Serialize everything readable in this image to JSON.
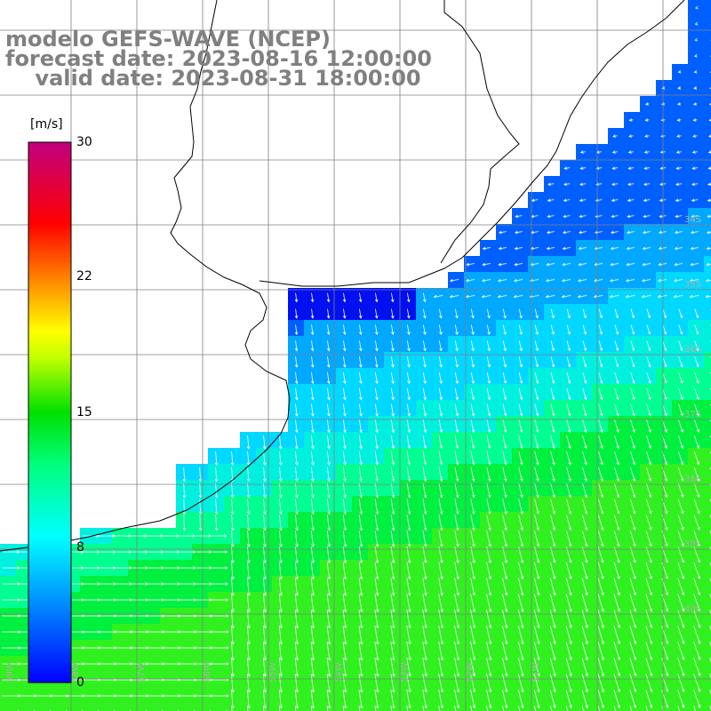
{
  "title": {
    "line1": "modelo GEFS-WAVE (NCEP)",
    "line2": "forecast date: 2023-08-16 12:00:00",
    "line3": "    valid date: 2023-08-31 18:00:00"
  },
  "colorbar": {
    "unit": "[m/s]",
    "min": 0,
    "max": 30,
    "ticks": [
      "30",
      "22",
      "15",
      "8",
      "0"
    ],
    "tick_values": [
      30,
      22,
      15,
      8,
      0
    ],
    "colors": [
      "#0000ff",
      "#0070ff",
      "#00d0ff",
      "#00ffd0",
      "#00ff40",
      "#00e000",
      "#80ff00",
      "#ffff00",
      "#ff8000",
      "#ff0000",
      "#ff0060",
      "#c00080"
    ]
  },
  "map": {
    "lat_labels": [
      "34S",
      "35S",
      "36S",
      "37S",
      "38S",
      "39S",
      "40S"
    ],
    "lon_labels": [
      "59W",
      "58W",
      "57W",
      "56W",
      "55W",
      "54W",
      "53W",
      "52W",
      "51W"
    ],
    "land_color": "#ffffff",
    "grid_color": "#808080",
    "coast_color": "#000000",
    "arrow_color": "#ffffff"
  }
}
